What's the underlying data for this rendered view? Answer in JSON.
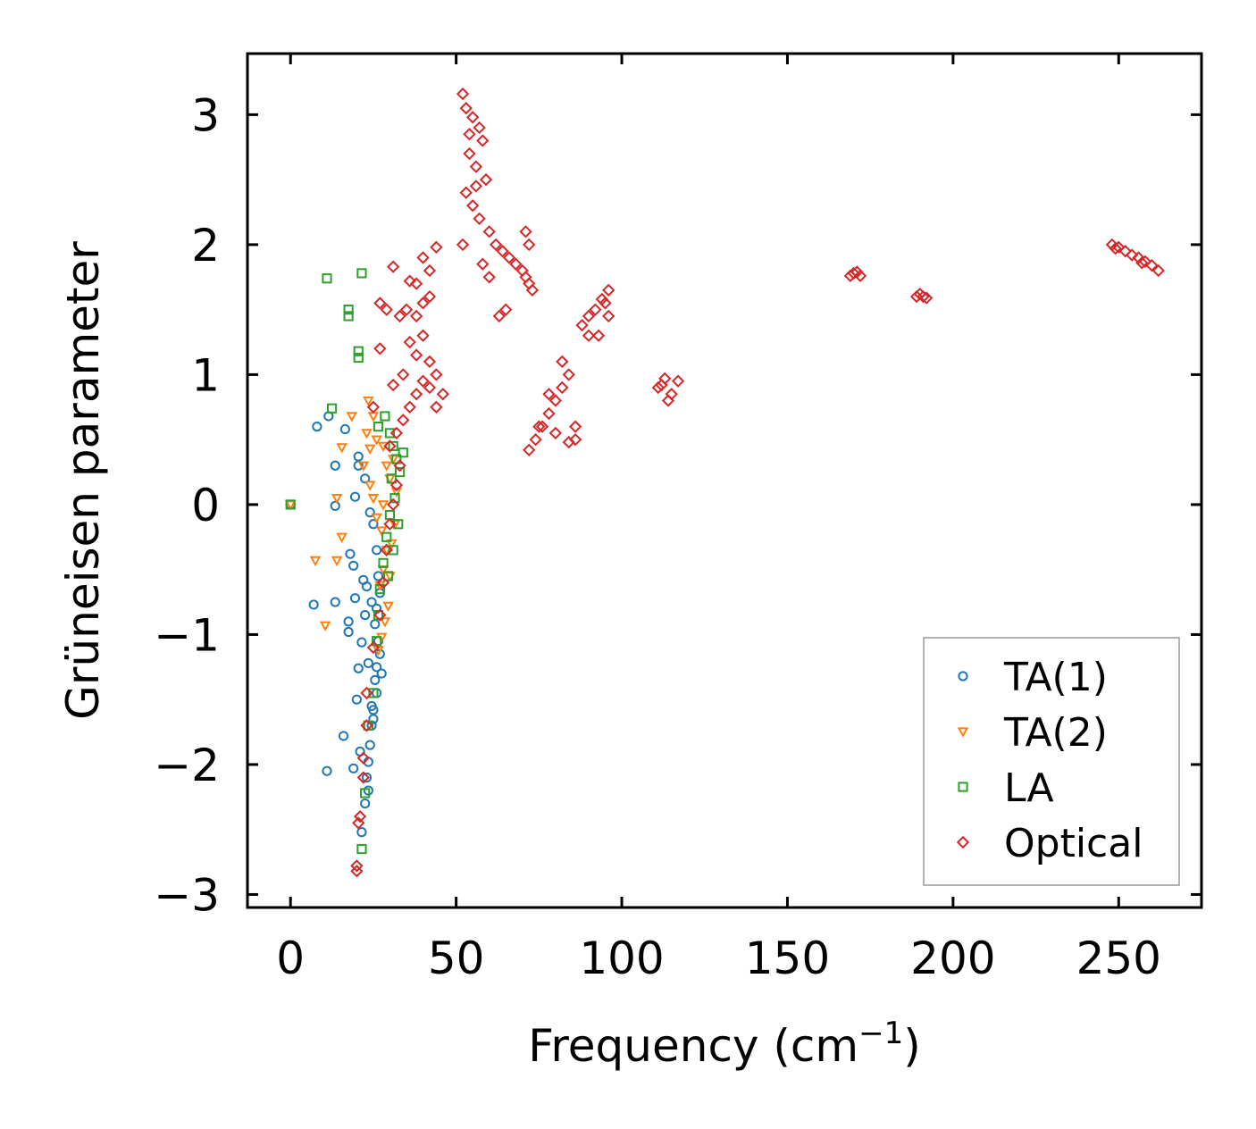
{
  "chart_data": {
    "type": "scatter",
    "title": "",
    "xlabel": "Frequency (cm",
    "xlabel_sup": "−1",
    "xlabel_end": ")",
    "ylabel": "Grüneisen parameter",
    "xlim": [
      -13,
      275
    ],
    "ylim": [
      -3.1,
      3.47
    ],
    "xticks": [
      0,
      50,
      100,
      150,
      200,
      250
    ],
    "xtick_labels": [
      "0",
      "50",
      "100",
      "150",
      "200",
      "250"
    ],
    "yticks": [
      -3,
      -2,
      -1,
      0,
      1,
      2,
      3
    ],
    "ytick_labels": [
      "−3",
      "−2",
      "−1",
      "0",
      "1",
      "2",
      "3"
    ],
    "legend_position": "lower-right",
    "series": [
      {
        "name": "TA(1)",
        "marker": "circle",
        "color": "#1f77b4",
        "points": [
          [
            0,
            0
          ],
          [
            8,
            0.6
          ],
          [
            11.5,
            0.68
          ],
          [
            13.5,
            0.3
          ],
          [
            13.5,
            -0.01
          ],
          [
            16.5,
            0.58
          ],
          [
            20.5,
            0.37
          ],
          [
            20.5,
            0.3
          ],
          [
            19.5,
            0.06
          ],
          [
            22.5,
            0.2
          ],
          [
            24,
            -0.06
          ],
          [
            18,
            -0.38
          ],
          [
            19,
            -0.47
          ],
          [
            22,
            -0.58
          ],
          [
            23,
            -0.63
          ],
          [
            19.5,
            -0.72
          ],
          [
            7,
            -0.77
          ],
          [
            13.5,
            -0.75
          ],
          [
            17.5,
            -0.9
          ],
          [
            17.5,
            -0.98
          ],
          [
            22.5,
            -0.85
          ],
          [
            21.5,
            -1.06
          ],
          [
            20.5,
            -1.26
          ],
          [
            23.5,
            -1.22
          ],
          [
            20,
            -1.5
          ],
          [
            16,
            -1.78
          ],
          [
            21,
            -1.9
          ],
          [
            19,
            -2.03
          ],
          [
            11,
            -2.05
          ],
          [
            23,
            -2.1
          ],
          [
            21.5,
            -2.52
          ],
          [
            22.5,
            -2.3
          ],
          [
            25,
            -0.15
          ],
          [
            26,
            -0.35
          ],
          [
            26.5,
            -0.55
          ],
          [
            27,
            -0.68
          ],
          [
            26,
            -0.8
          ],
          [
            25.5,
            -0.92
          ],
          [
            26.5,
            -1.05
          ],
          [
            27,
            -1.15
          ],
          [
            26,
            -1.25
          ],
          [
            25.5,
            -1.35
          ],
          [
            26,
            -1.45
          ],
          [
            25,
            -1.58
          ],
          [
            24.5,
            -1.7
          ],
          [
            24,
            -1.85
          ],
          [
            23.5,
            -1.98
          ],
          [
            24.5,
            -0.75
          ],
          [
            27.5,
            -1.3
          ],
          [
            25,
            -1.65
          ],
          [
            24.5,
            -1.55
          ],
          [
            23.5,
            -2.2
          ]
        ]
      },
      {
        "name": "TA(2)",
        "marker": "triangle-down",
        "color": "#ff7f0e",
        "points": [
          [
            0,
            0
          ],
          [
            7.5,
            -0.43
          ],
          [
            14,
            -0.43
          ],
          [
            14,
            0.05
          ],
          [
            15.5,
            -0.25
          ],
          [
            10.5,
            -0.93
          ],
          [
            18.5,
            0.68
          ],
          [
            15.5,
            0.44
          ],
          [
            23.5,
            0.8
          ],
          [
            25,
            0.68
          ],
          [
            23,
            0.55
          ],
          [
            24,
            0.43
          ],
          [
            26,
            0.5
          ],
          [
            28,
            0.45
          ],
          [
            22,
            0.3
          ],
          [
            24,
            0.15
          ],
          [
            25,
            0.05
          ],
          [
            26,
            -0.1
          ],
          [
            27.5,
            -0.2
          ],
          [
            29,
            -0.35
          ],
          [
            28,
            -0.5
          ],
          [
            27,
            -0.62
          ],
          [
            29.5,
            -0.78
          ],
          [
            28.5,
            -0.9
          ],
          [
            27.5,
            -1.02
          ],
          [
            26.5,
            -1.12
          ],
          [
            30,
            0.2
          ],
          [
            31,
            0.35
          ],
          [
            32,
            0.1
          ],
          [
            31.5,
            -0.15
          ],
          [
            30.5,
            -0.3
          ],
          [
            29,
            0.3
          ],
          [
            30,
            -0.55
          ],
          [
            28,
            0.0
          ]
        ]
      },
      {
        "name": "LA",
        "marker": "square",
        "color": "#2ca02c",
        "points": [
          [
            0,
            0
          ],
          [
            11,
            1.74
          ],
          [
            21.5,
            1.78
          ],
          [
            17.5,
            1.5
          ],
          [
            17.5,
            1.45
          ],
          [
            20.5,
            1.18
          ],
          [
            20.5,
            1.13
          ],
          [
            12.5,
            0.74
          ],
          [
            28.5,
            0.68
          ],
          [
            26.5,
            0.6
          ],
          [
            30,
            0.55
          ],
          [
            31,
            0.45
          ],
          [
            32,
            0.35
          ],
          [
            30.5,
            0.2
          ],
          [
            31.5,
            0.05
          ],
          [
            30,
            -0.08
          ],
          [
            29,
            -0.25
          ],
          [
            28,
            -0.45
          ],
          [
            27,
            -0.65
          ],
          [
            26.5,
            -0.85
          ],
          [
            26,
            -1.05
          ],
          [
            25,
            -1.45
          ],
          [
            23.5,
            -1.7
          ],
          [
            22.5,
            -2.22
          ],
          [
            21.5,
            -2.65
          ],
          [
            33,
            0.25
          ],
          [
            34,
            0.4
          ],
          [
            32.5,
            -0.15
          ],
          [
            31,
            -0.35
          ],
          [
            29.5,
            -0.55
          ]
        ]
      },
      {
        "name": "Optical",
        "marker": "diamond",
        "color": "#d62728",
        "points": [
          [
            52,
            3.16
          ],
          [
            53,
            3.05
          ],
          [
            55,
            2.98
          ],
          [
            57,
            2.9
          ],
          [
            58,
            2.8
          ],
          [
            54,
            2.7
          ],
          [
            56,
            2.6
          ],
          [
            59,
            2.5
          ],
          [
            53,
            2.4
          ],
          [
            55,
            2.3
          ],
          [
            57,
            2.2
          ],
          [
            60,
            2.1
          ],
          [
            52,
            2.0
          ],
          [
            62,
            2.0
          ],
          [
            64,
            1.95
          ],
          [
            66,
            1.9
          ],
          [
            68,
            1.85
          ],
          [
            70,
            1.8
          ],
          [
            71,
            1.75
          ],
          [
            72,
            1.7
          ],
          [
            73,
            1.65
          ],
          [
            65,
            1.5
          ],
          [
            63,
            1.45
          ],
          [
            71,
            2.1
          ],
          [
            72,
            2.0
          ],
          [
            60,
            1.75
          ],
          [
            58,
            1.85
          ],
          [
            56,
            2.45
          ],
          [
            54,
            2.85
          ],
          [
            72,
            0.42
          ],
          [
            74,
            0.5
          ],
          [
            76,
            0.6
          ],
          [
            78,
            0.7
          ],
          [
            80,
            0.8
          ],
          [
            82,
            0.9
          ],
          [
            82,
            1.1
          ],
          [
            84,
            1.0
          ],
          [
            80,
            0.55
          ],
          [
            84,
            0.48
          ],
          [
            86,
            0.6
          ],
          [
            86,
            0.5
          ],
          [
            78,
            0.85
          ],
          [
            75,
            0.6
          ],
          [
            88,
            1.38
          ],
          [
            90,
            1.45
          ],
          [
            92,
            1.5
          ],
          [
            94,
            1.58
          ],
          [
            96,
            1.65
          ],
          [
            90,
            1.3
          ],
          [
            93,
            1.3
          ],
          [
            96,
            1.45
          ],
          [
            95,
            1.55
          ],
          [
            111,
            0.9
          ],
          [
            113,
            0.97
          ],
          [
            115,
            0.85
          ],
          [
            117,
            0.95
          ],
          [
            114,
            0.8
          ],
          [
            112,
            0.92
          ],
          [
            170,
            1.78
          ],
          [
            172,
            1.76
          ],
          [
            169,
            1.76
          ],
          [
            171,
            1.79
          ],
          [
            189,
            1.6
          ],
          [
            191,
            1.6
          ],
          [
            190,
            1.62
          ],
          [
            192,
            1.59
          ],
          [
            248,
            2.0
          ],
          [
            250,
            1.98
          ],
          [
            252,
            1.95
          ],
          [
            254,
            1.92
          ],
          [
            256,
            1.9
          ],
          [
            258,
            1.87
          ],
          [
            260,
            1.84
          ],
          [
            262,
            1.8
          ],
          [
            249,
            1.97
          ],
          [
            257,
            1.86
          ],
          [
            31,
            1.83
          ],
          [
            36,
            1.72
          ],
          [
            38,
            1.7
          ],
          [
            40,
            1.9
          ],
          [
            42,
            1.8
          ],
          [
            44,
            1.98
          ],
          [
            42,
            1.6
          ],
          [
            40,
            1.55
          ],
          [
            38,
            1.45
          ],
          [
            35,
            1.5
          ],
          [
            33,
            1.45
          ],
          [
            27,
            1.55
          ],
          [
            29,
            1.5
          ],
          [
            27,
            1.2
          ],
          [
            36,
            1.25
          ],
          [
            38,
            1.15
          ],
          [
            40,
            1.3
          ],
          [
            42,
            1.1
          ],
          [
            44,
            1.0
          ],
          [
            46,
            0.85
          ],
          [
            44,
            0.75
          ],
          [
            42,
            0.9
          ],
          [
            40,
            0.95
          ],
          [
            38,
            0.85
          ],
          [
            36,
            0.75
          ],
          [
            34,
            0.65
          ],
          [
            32,
            0.55
          ],
          [
            30,
            0.45
          ],
          [
            31,
            0.92
          ],
          [
            34,
            1.0
          ],
          [
            25,
            0.75
          ],
          [
            33,
            0.3
          ],
          [
            32,
            0.15
          ],
          [
            31,
            0.0
          ],
          [
            30,
            -0.15
          ],
          [
            29,
            -0.35
          ],
          [
            28,
            -0.6
          ],
          [
            27,
            -0.85
          ],
          [
            25,
            -1.1
          ],
          [
            23,
            -1.45
          ],
          [
            23,
            -1.7
          ],
          [
            22,
            -1.95
          ],
          [
            22,
            -2.1
          ],
          [
            21,
            -2.4
          ],
          [
            20.5,
            -2.45
          ],
          [
            20,
            -2.78
          ],
          [
            20,
            -2.82
          ]
        ]
      }
    ]
  }
}
